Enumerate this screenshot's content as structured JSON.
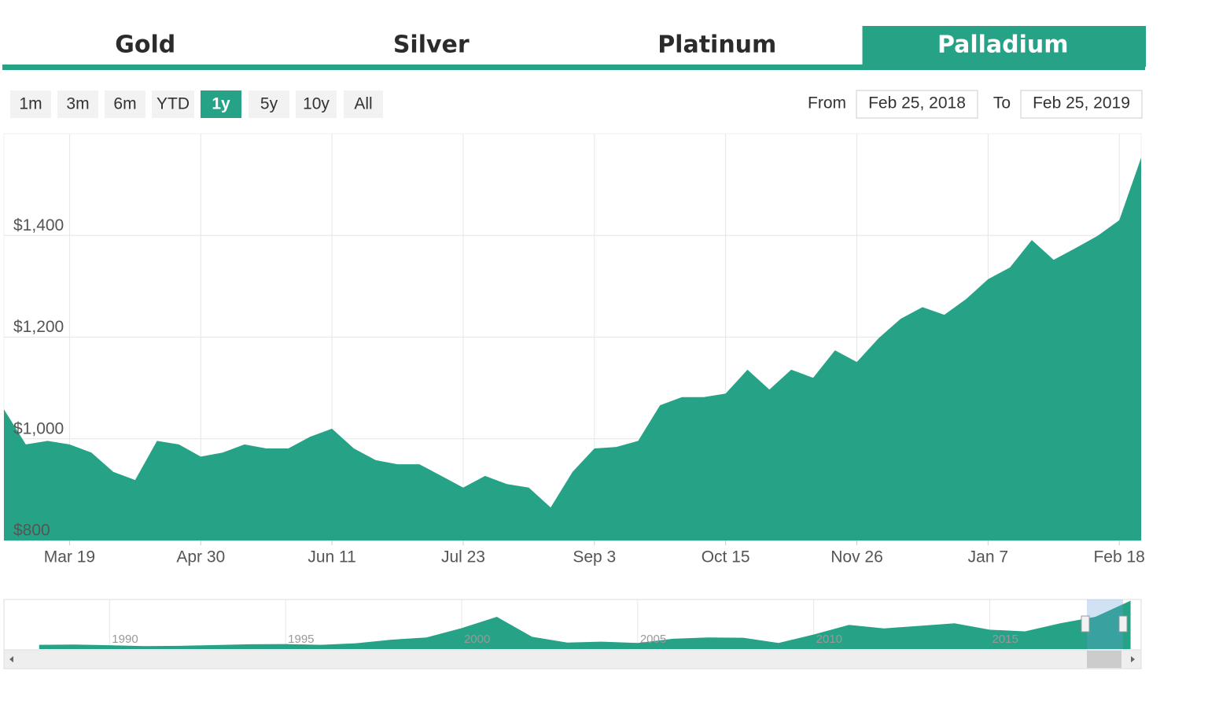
{
  "tabs": [
    "Gold",
    "Silver",
    "Platinum",
    "Palladium"
  ],
  "active_tab": 3,
  "range_buttons": [
    "1m",
    "3m",
    "6m",
    "YTD",
    "1y",
    "5y",
    "10y",
    "All"
  ],
  "active_range": 4,
  "from_label": "From",
  "from": "Feb 25, 2018",
  "to_label": "To",
  "to": "Feb 25, 2019",
  "chart_data": {
    "type": "area",
    "color": "#26a387",
    "values": [
      1058,
      989,
      996,
      989,
      973,
      935,
      919,
      996,
      989,
      965,
      973,
      989,
      981,
      981,
      1004,
      1020,
      981,
      958,
      950,
      950,
      927,
      904,
      927,
      911,
      904,
      865,
      935,
      981,
      984,
      996,
      1066,
      1082,
      1082,
      1089,
      1136,
      1097,
      1136,
      1120,
      1174,
      1151,
      1198,
      1236,
      1259,
      1244,
      1275,
      1314,
      1337,
      1391,
      1352,
      1375,
      1399,
      1430,
      1553
    ],
    "xlim": [
      0,
      52
    ],
    "xticks": [
      {
        "value": 3,
        "label": "Mar 19"
      },
      {
        "value": 9,
        "label": "Apr 30"
      },
      {
        "value": 15,
        "label": "Jun 11"
      },
      {
        "value": 21,
        "label": "Jul 23"
      },
      {
        "value": 27,
        "label": "Sep 3"
      },
      {
        "value": 33,
        "label": "Oct 15"
      },
      {
        "value": 39,
        "label": "Nov 26"
      },
      {
        "value": 45,
        "label": "Jan 7"
      },
      {
        "value": 51,
        "label": "Feb 18"
      }
    ],
    "ylim": [
      800,
      1600
    ],
    "yticks": [
      {
        "value": 800,
        "label": "$800"
      },
      {
        "value": 1000,
        "label": "$1,000"
      },
      {
        "value": 1200,
        "label": "$1,200"
      },
      {
        "value": 1400,
        "label": "$1,400"
      }
    ],
    "grid": true
  },
  "navigator": {
    "type": "area",
    "color": "#26a387",
    "x": [
      1988,
      1989,
      1990,
      1991,
      1992,
      1993,
      1994,
      1995,
      1996,
      1997,
      1998,
      1999,
      2000,
      2001,
      2002,
      2003,
      2004,
      2005,
      2006,
      2007,
      2008,
      2009,
      2010,
      2011,
      2012,
      2013,
      2014,
      2015,
      2016,
      2017,
      2018,
      2019
    ],
    "values": [
      130,
      140,
      120,
      90,
      100,
      125,
      150,
      155,
      130,
      180,
      290,
      360,
      650,
      1000,
      380,
      200,
      230,
      190,
      320,
      360,
      350,
      190,
      450,
      750,
      640,
      720,
      800,
      600,
      550,
      800,
      1000,
      1500
    ],
    "xlim": [
      1987,
      2019.3
    ],
    "xticks": [
      1990,
      1995,
      2000,
      2005,
      2010,
      2015
    ]
  }
}
